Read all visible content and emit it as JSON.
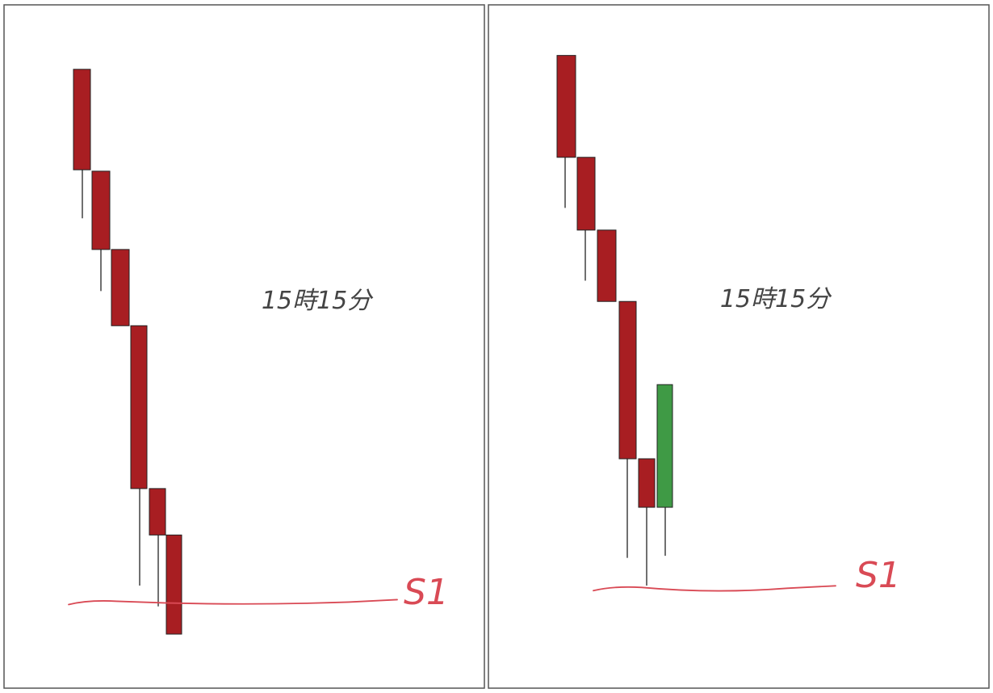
{
  "colors": {
    "bearish": "#A81E22",
    "bullish": "#3F9A45",
    "wick": "#333333",
    "candle_border": "#222222",
    "frame": "#555555",
    "support_line": "#D94A55",
    "annotation_text": "#444444"
  },
  "chart_data": [
    {
      "type": "candlestick",
      "label": "15時15分",
      "ylim": [
        0,
        100
      ],
      "support": {
        "label": "S1",
        "level": 13
      },
      "candles": [
        {
          "open": 90,
          "close": 75.5,
          "high": 90,
          "low": 68.5,
          "direction": "down"
        },
        {
          "open": 75.3,
          "close": 64,
          "high": 75.3,
          "low": 58,
          "direction": "down"
        },
        {
          "open": 64,
          "close": 53,
          "high": 64,
          "low": 53,
          "direction": "down"
        },
        {
          "open": 53,
          "close": 29.5,
          "high": 53,
          "low": 15.5,
          "direction": "down"
        },
        {
          "open": 29.5,
          "close": 22.8,
          "high": 29.5,
          "low": 12.5,
          "direction": "down"
        },
        {
          "open": 22.8,
          "close": 8.5,
          "high": 22.8,
          "low": 8.5,
          "direction": "down"
        }
      ]
    },
    {
      "type": "candlestick",
      "label": "15時15分",
      "ylim": [
        0,
        100
      ],
      "support": {
        "label": "S1",
        "level": 15
      },
      "candles": [
        {
          "open": 92,
          "close": 77.3,
          "high": 92,
          "low": 70,
          "direction": "down"
        },
        {
          "open": 77.3,
          "close": 66.8,
          "high": 77.3,
          "low": 59.5,
          "direction": "down"
        },
        {
          "open": 66.8,
          "close": 56.5,
          "high": 66.8,
          "low": 56.5,
          "direction": "down"
        },
        {
          "open": 56.5,
          "close": 33.8,
          "high": 56.5,
          "low": 19.5,
          "direction": "down"
        },
        {
          "open": 33.8,
          "close": 26.8,
          "high": 33.8,
          "low": 15.5,
          "direction": "down"
        },
        {
          "open": 26.8,
          "close": 44.5,
          "high": 44.5,
          "low": 19.8,
          "direction": "up"
        }
      ]
    }
  ]
}
